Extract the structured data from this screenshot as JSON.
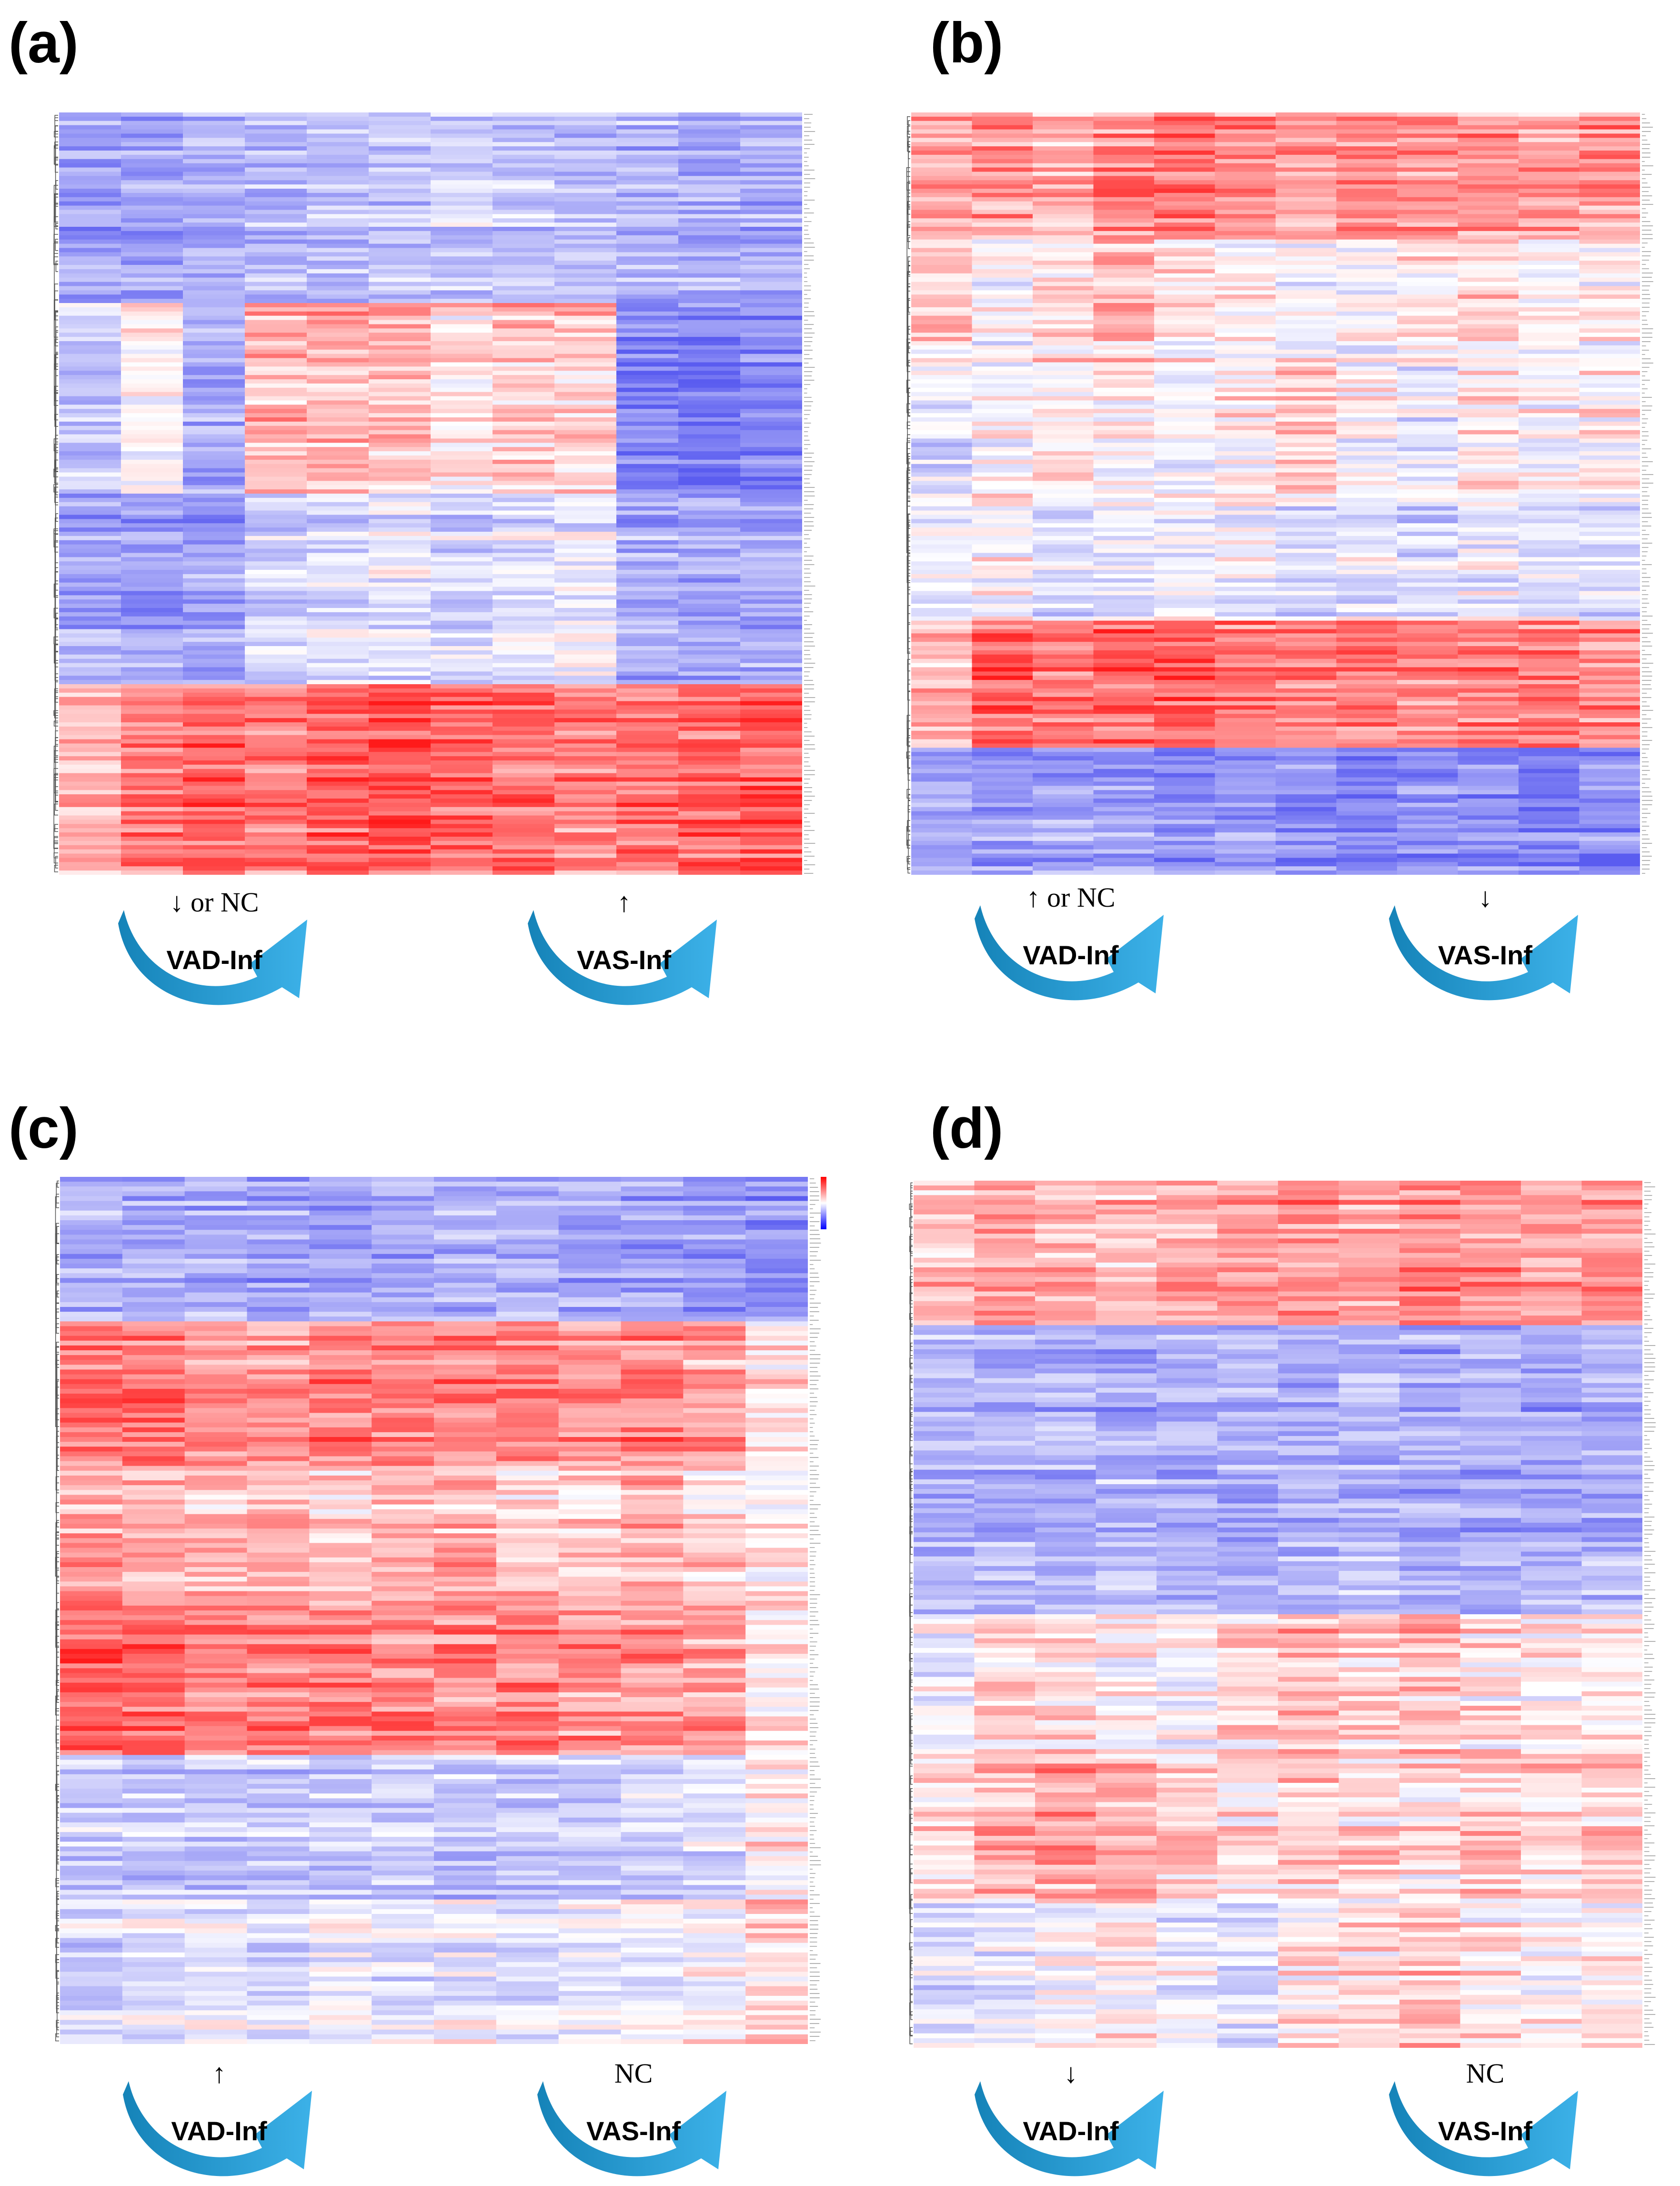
{
  "figure": {
    "panels": [
      {
        "id": "a",
        "label": "(a)",
        "pattern": [
          [
            -0.55,
            -0.6,
            -0.5,
            -0.45,
            -0.4,
            -0.35,
            -0.3,
            -0.35,
            -0.4,
            -0.45,
            -0.5,
            -0.5
          ],
          [
            -0.3,
            0.0,
            -0.5,
            0.3,
            0.35,
            0.3,
            0.1,
            0.25,
            0.2,
            -0.75,
            -0.8,
            -0.7
          ],
          [
            -0.55,
            -0.6,
            -0.55,
            -0.3,
            -0.2,
            -0.15,
            -0.25,
            -0.2,
            -0.1,
            -0.5,
            -0.55,
            -0.5
          ],
          [
            0.35,
            0.55,
            0.65,
            0.6,
            0.7,
            0.75,
            0.7,
            0.65,
            0.55,
            0.6,
            0.65,
            0.7
          ]
        ],
        "arrows": [
          {
            "direction": "↓ or NC",
            "group": "VAD-Inf"
          },
          {
            "direction": "↑",
            "group": "VAS-Inf"
          }
        ]
      },
      {
        "id": "b",
        "label": "(b)",
        "pattern": [
          [
            0.35,
            0.45,
            0.3,
            0.5,
            0.55,
            0.45,
            0.4,
            0.45,
            0.5,
            0.45,
            0.4,
            0.45
          ],
          [
            0.2,
            0.0,
            0.15,
            0.3,
            0.1,
            0.05,
            0.0,
            -0.05,
            0.1,
            0.15,
            0.0,
            0.05
          ],
          [
            -0.2,
            0.0,
            0.1,
            0.0,
            -0.1,
            0.1,
            0.2,
            0.0,
            -0.15,
            0.1,
            0.0,
            0.05
          ],
          [
            -0.1,
            0.0,
            -0.2,
            -0.15,
            -0.1,
            -0.05,
            -0.2,
            -0.15,
            -0.25,
            -0.1,
            -0.15,
            -0.2
          ],
          [
            0.3,
            0.7,
            0.55,
            0.65,
            0.7,
            0.6,
            0.55,
            0.6,
            0.5,
            0.55,
            0.6,
            0.5
          ],
          [
            -0.55,
            -0.6,
            -0.55,
            -0.6,
            -0.65,
            -0.6,
            -0.65,
            -0.7,
            -0.65,
            -0.7,
            -0.75,
            -0.7
          ]
        ],
        "arrows": [
          {
            "direction": "↑ or NC",
            "group": "VAD-Inf"
          },
          {
            "direction": "↓",
            "group": "VAS-Inf"
          }
        ]
      },
      {
        "id": "c",
        "label": "(c)",
        "pattern": [
          [
            -0.45,
            -0.5,
            -0.5,
            -0.55,
            -0.55,
            -0.5,
            -0.45,
            -0.5,
            -0.5,
            -0.55,
            -0.6,
            -0.7
          ],
          [
            0.6,
            0.65,
            0.55,
            0.5,
            0.55,
            0.6,
            0.55,
            0.6,
            0.5,
            0.55,
            0.45,
            0.1
          ],
          [
            0.4,
            0.35,
            0.3,
            0.35,
            0.25,
            0.3,
            0.35,
            0.25,
            0.2,
            0.3,
            0.2,
            0.0
          ],
          [
            0.7,
            0.65,
            0.6,
            0.55,
            0.6,
            0.55,
            0.5,
            0.55,
            0.5,
            0.45,
            0.4,
            0.1
          ],
          [
            -0.3,
            -0.35,
            -0.3,
            -0.35,
            -0.3,
            -0.3,
            -0.35,
            -0.3,
            -0.3,
            -0.25,
            -0.2,
            0.1
          ],
          [
            -0.25,
            -0.2,
            -0.15,
            -0.2,
            -0.1,
            -0.15,
            -0.1,
            -0.15,
            -0.1,
            -0.05,
            0.0,
            0.2
          ]
        ],
        "arrows": [
          {
            "direction": "↑",
            "group": "VAD-Inf"
          },
          {
            "direction": "NC",
            "group": "VAS-Inf"
          }
        ]
      },
      {
        "id": "d",
        "label": "(d)",
        "pattern": [
          [
            0.3,
            0.45,
            0.35,
            0.3,
            0.4,
            0.45,
            0.5,
            0.4,
            0.55,
            0.5,
            0.45,
            0.5
          ],
          [
            -0.5,
            -0.55,
            -0.5,
            -0.55,
            -0.55,
            -0.5,
            -0.55,
            -0.5,
            -0.55,
            -0.5,
            -0.55,
            -0.5
          ],
          [
            -0.45,
            -0.5,
            -0.5,
            -0.45,
            -0.5,
            -0.55,
            -0.5,
            -0.45,
            -0.5,
            -0.55,
            -0.5,
            -0.45
          ],
          [
            -0.1,
            0.2,
            0.1,
            0.0,
            -0.1,
            0.15,
            0.3,
            0.2,
            0.25,
            0.1,
            0.05,
            0.1
          ],
          [
            0.1,
            0.3,
            0.4,
            0.35,
            0.2,
            0.1,
            0.2,
            0.15,
            0.1,
            0.2,
            0.15,
            0.2
          ],
          [
            -0.2,
            -0.1,
            0.0,
            0.1,
            -0.1,
            -0.2,
            0.1,
            0.15,
            0.3,
            0.1,
            0.0,
            0.1
          ]
        ],
        "arrows": [
          {
            "direction": "↓",
            "group": "VAD-Inf"
          },
          {
            "direction": "NC",
            "group": "VAS-Inf"
          }
        ]
      }
    ]
  },
  "colors": {
    "high": "#ff1a1a",
    "mid": "#ffffff",
    "low": "#5a5cf0",
    "arrow_dark": "#1583b8",
    "arrow_light": "#3cb1e8"
  }
}
